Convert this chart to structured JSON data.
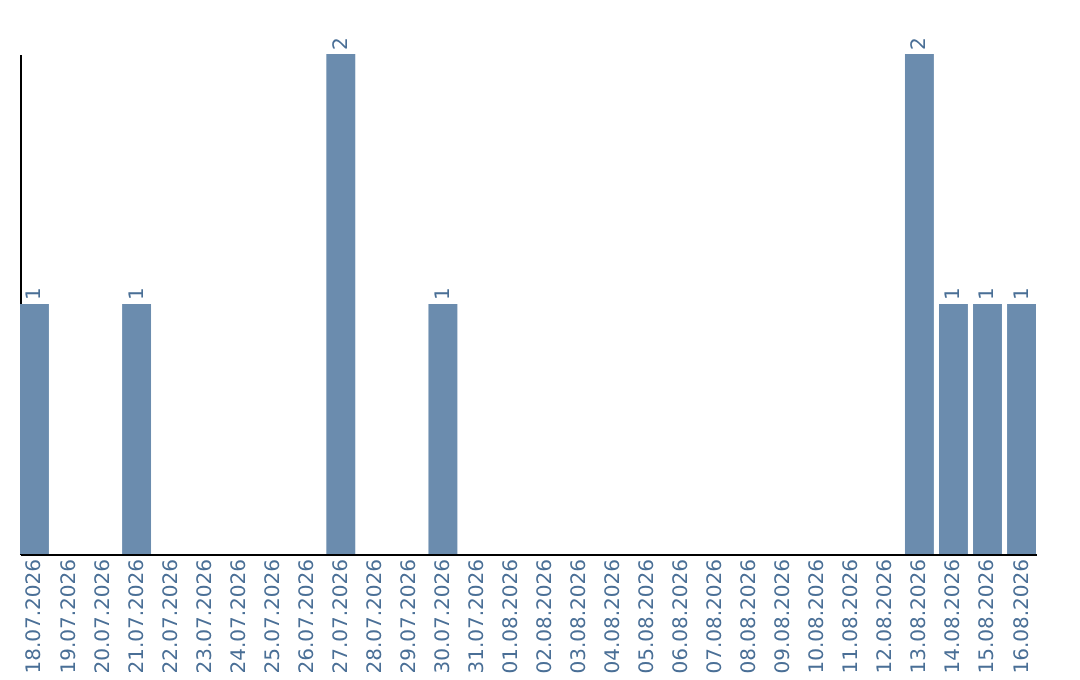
{
  "chart_data": {
    "type": "bar",
    "categories": [
      "18.07.2026",
      "19.07.2026",
      "20.07.2026",
      "21.07.2026",
      "22.07.2026",
      "23.07.2026",
      "24.07.2026",
      "25.07.2026",
      "26.07.2026",
      "27.07.2026",
      "28.07.2026",
      "29.07.2026",
      "30.07.2026",
      "31.07.2026",
      "01.08.2026",
      "02.08.2026",
      "03.08.2026",
      "04.08.2026",
      "05.08.2026",
      "06.08.2026",
      "07.08.2026",
      "08.08.2026",
      "09.08.2026",
      "10.08.2026",
      "11.08.2026",
      "12.08.2026",
      "13.08.2026",
      "14.08.2026",
      "15.08.2026",
      "16.08.2026"
    ],
    "values": [
      1,
      0,
      0,
      1,
      0,
      0,
      0,
      0,
      0,
      2,
      0,
      0,
      1,
      0,
      0,
      0,
      0,
      0,
      0,
      0,
      0,
      0,
      0,
      0,
      0,
      0,
      2,
      1,
      1,
      1
    ],
    "value_labels": [
      "1",
      null,
      null,
      "1",
      null,
      null,
      null,
      null,
      null,
      "2",
      null,
      null,
      "1",
      null,
      null,
      null,
      null,
      null,
      null,
      null,
      null,
      null,
      null,
      null,
      null,
      null,
      "2",
      "1",
      "1",
      "1"
    ],
    "color": "#6b8cae",
    "ylim": [
      0,
      2
    ],
    "tick_labels": "x"
  }
}
